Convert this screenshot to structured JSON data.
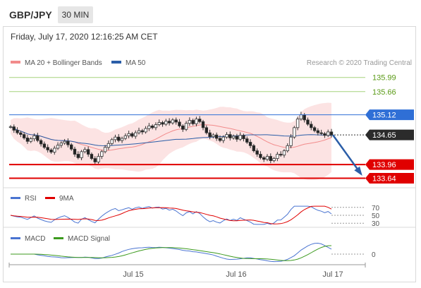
{
  "header": {
    "symbol": "GBP/JPY",
    "timeframe": "30 MIN"
  },
  "chart_data": {
    "type": "candlestick",
    "timestamp": "Friday, July 17, 2020 12:16:25 AM CET",
    "copyright": "Research © 2020 Trading Central",
    "legend": [
      {
        "label": "MA 20 + Bollinger Bands",
        "color": "#f28b8b"
      },
      {
        "label": "MA 50",
        "color": "#2b5ea8"
      }
    ],
    "price_axis": {
      "ylim": [
        133.55,
        136.15
      ]
    },
    "levels": [
      {
        "value": 135.99,
        "label": "135.99",
        "color": "#a6d37d",
        "text_color": "#5a9a16",
        "style": "resistance"
      },
      {
        "value": 135.66,
        "label": "135.66",
        "color": "#a6d37d",
        "text_color": "#5a9a16",
        "style": "resistance"
      },
      {
        "value": 135.12,
        "label": "135.12",
        "color": "#2f6fd6",
        "text_color": "#ffffff",
        "style": "pivot"
      },
      {
        "value": 134.65,
        "label": "134.65",
        "color": "#2b2b2b",
        "text_color": "#ffffff",
        "style": "last"
      },
      {
        "value": 133.96,
        "label": "133.96",
        "color": "#e00000",
        "text_color": "#ffffff",
        "style": "support"
      },
      {
        "value": 133.64,
        "label": "133.64",
        "color": "#e00000",
        "text_color": "#ffffff",
        "style": "support"
      }
    ],
    "projection": {
      "from": 134.65,
      "to": 133.64,
      "color": "#2b5ea8"
    },
    "price_series": [
      134.84,
      134.76,
      134.7,
      134.66,
      134.58,
      134.5,
      134.56,
      134.63,
      134.52,
      134.44,
      134.36,
      134.3,
      134.25,
      134.34,
      134.41,
      134.46,
      134.5,
      134.42,
      134.32,
      134.2,
      134.12,
      134.26,
      134.31,
      134.2,
      134.1,
      134.02,
      134.15,
      134.26,
      134.36,
      134.45,
      134.54,
      134.6,
      134.52,
      134.57,
      134.63,
      134.68,
      134.62,
      134.7,
      134.75,
      134.72,
      134.8,
      134.86,
      134.82,
      134.89,
      134.94,
      134.9,
      134.97,
      134.93,
      135.0,
      134.95,
      134.86,
      134.78,
      134.92,
      134.99,
      134.91,
      135.02,
      134.96,
      134.82,
      134.7,
      134.61,
      134.65,
      134.57,
      134.52,
      134.6,
      134.66,
      134.58,
      134.62,
      134.55,
      134.64,
      134.56,
      134.48,
      134.4,
      134.28,
      134.2,
      134.12,
      134.08,
      134.15,
      134.05,
      134.1,
      134.2,
      134.18,
      134.28,
      134.4,
      134.6,
      134.82,
      135.02,
      135.12,
      135.0,
      134.9,
      134.82,
      134.75,
      134.7,
      134.68,
      134.64,
      134.72,
      134.65
    ],
    "indicators": [
      {
        "name": "RSI",
        "levels": [
          70,
          50,
          30
        ],
        "signal": "9MA",
        "colors": [
          "#4a74d1",
          "#e00000"
        ]
      },
      {
        "name": "MACD",
        "levels": [
          0
        ],
        "signal": "MACD Signal",
        "colors": [
          "#4a74d1",
          "#3c9a1e"
        ]
      }
    ],
    "x_ticks": [
      "Jul 15",
      "Jul 16",
      "Jul 17"
    ]
  }
}
